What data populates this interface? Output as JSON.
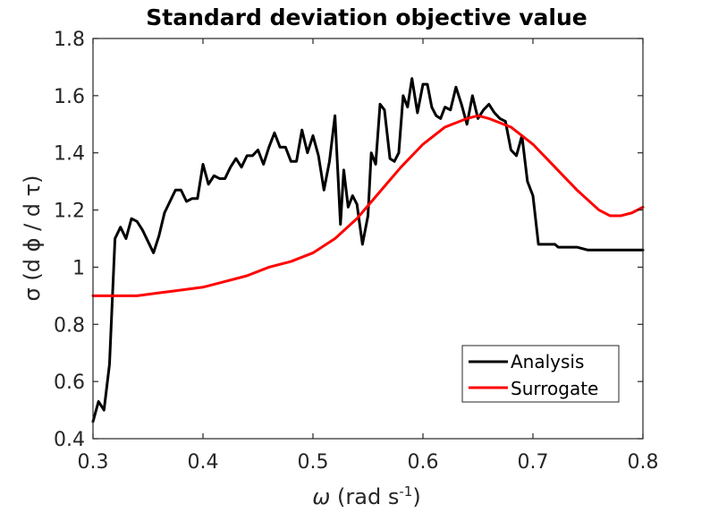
{
  "chart_data": {
    "type": "line",
    "title": "Standard deviation objective value",
    "xlabel": {
      "symbol": "ω",
      "text": " (rad s",
      "sup": "-1",
      "close": ")"
    },
    "ylabel": "σ (d ϕ / d τ)",
    "xlim": [
      0.3,
      0.8
    ],
    "ylim": [
      0.4,
      1.8
    ],
    "xticks": [
      0.3,
      0.4,
      0.5,
      0.6,
      0.7,
      0.8
    ],
    "xtick_labels": [
      "0.3",
      "0.4",
      "0.5",
      "0.6",
      "0.7",
      "0.8"
    ],
    "yticks": [
      0.4,
      0.6,
      0.8,
      1.0,
      1.2,
      1.4,
      1.6,
      1.8
    ],
    "ytick_labels": [
      "0.4",
      "0.6",
      "0.8",
      "1",
      "1.2",
      "1.4",
      "1.6",
      "1.8"
    ],
    "grid": false,
    "legend_position": "bottom-right",
    "series": [
      {
        "name": "Analysis",
        "color": "#000000",
        "x": [
          0.3,
          0.305,
          0.31,
          0.315,
          0.32,
          0.325,
          0.33,
          0.335,
          0.34,
          0.345,
          0.35,
          0.355,
          0.36,
          0.365,
          0.37,
          0.375,
          0.38,
          0.385,
          0.39,
          0.395,
          0.4,
          0.405,
          0.41,
          0.415,
          0.42,
          0.425,
          0.43,
          0.435,
          0.44,
          0.445,
          0.45,
          0.455,
          0.46,
          0.465,
          0.47,
          0.475,
          0.48,
          0.485,
          0.49,
          0.495,
          0.5,
          0.505,
          0.51,
          0.515,
          0.52,
          0.525,
          0.528,
          0.532,
          0.536,
          0.54,
          0.545,
          0.55,
          0.553,
          0.557,
          0.561,
          0.565,
          0.57,
          0.574,
          0.578,
          0.582,
          0.586,
          0.59,
          0.595,
          0.6,
          0.604,
          0.608,
          0.612,
          0.616,
          0.62,
          0.625,
          0.63,
          0.635,
          0.64,
          0.645,
          0.65,
          0.655,
          0.66,
          0.665,
          0.67,
          0.675,
          0.68,
          0.685,
          0.69,
          0.695,
          0.7,
          0.705,
          0.71,
          0.715,
          0.72,
          0.723,
          0.73,
          0.74,
          0.75,
          0.76,
          0.77,
          0.78,
          0.79,
          0.8
        ],
        "y": [
          0.46,
          0.53,
          0.5,
          0.66,
          1.1,
          1.14,
          1.1,
          1.17,
          1.16,
          1.13,
          1.09,
          1.05,
          1.11,
          1.19,
          1.23,
          1.27,
          1.27,
          1.23,
          1.24,
          1.24,
          1.36,
          1.29,
          1.32,
          1.31,
          1.31,
          1.35,
          1.38,
          1.35,
          1.39,
          1.39,
          1.41,
          1.36,
          1.42,
          1.47,
          1.42,
          1.42,
          1.37,
          1.37,
          1.48,
          1.4,
          1.46,
          1.39,
          1.27,
          1.37,
          1.53,
          1.15,
          1.34,
          1.21,
          1.25,
          1.22,
          1.08,
          1.18,
          1.4,
          1.36,
          1.57,
          1.55,
          1.38,
          1.37,
          1.4,
          1.6,
          1.56,
          1.66,
          1.54,
          1.64,
          1.64,
          1.56,
          1.53,
          1.52,
          1.56,
          1.55,
          1.63,
          1.57,
          1.5,
          1.6,
          1.52,
          1.55,
          1.57,
          1.54,
          1.52,
          1.51,
          1.41,
          1.39,
          1.46,
          1.3,
          1.25,
          1.08,
          1.08,
          1.08,
          1.08,
          1.07,
          1.07,
          1.07,
          1.06,
          1.06,
          1.06,
          1.06,
          1.06,
          1.06
        ]
      },
      {
        "name": "Surrogate",
        "color": "#ff0000",
        "x": [
          0.3,
          0.32,
          0.34,
          0.36,
          0.38,
          0.4,
          0.42,
          0.44,
          0.46,
          0.48,
          0.5,
          0.52,
          0.54,
          0.56,
          0.58,
          0.6,
          0.62,
          0.64,
          0.65,
          0.66,
          0.68,
          0.7,
          0.72,
          0.74,
          0.76,
          0.77,
          0.78,
          0.79,
          0.8
        ],
        "y": [
          0.9,
          0.9,
          0.9,
          0.91,
          0.92,
          0.93,
          0.95,
          0.97,
          1.0,
          1.02,
          1.05,
          1.1,
          1.17,
          1.26,
          1.35,
          1.43,
          1.49,
          1.52,
          1.53,
          1.52,
          1.49,
          1.43,
          1.35,
          1.27,
          1.2,
          1.18,
          1.18,
          1.19,
          1.21
        ]
      }
    ]
  }
}
